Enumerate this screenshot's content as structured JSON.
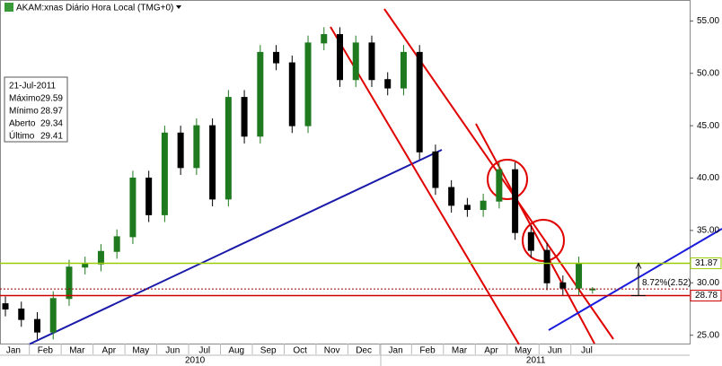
{
  "chart_data": {
    "type": "candlestick",
    "title": "AKAM:xnas Diário Hora Local (TMG+0)",
    "xlim": [
      0.08,
      21.73
    ],
    "ylim": [
      24.2,
      57.0
    ],
    "yticks": [
      {
        "value": 25,
        "label": "25.00"
      },
      {
        "value": 30,
        "label": "30.00"
      },
      {
        "value": 35,
        "label": "35.00"
      },
      {
        "value": 40,
        "label": "40.00"
      },
      {
        "value": 45,
        "label": "45.00"
      },
      {
        "value": 50,
        "label": "50.00"
      },
      {
        "value": 55,
        "label": "55.00"
      }
    ],
    "xticks": [
      {
        "value": 0.5,
        "label": "Jan"
      },
      {
        "value": 1.5,
        "label": "Feb"
      },
      {
        "value": 2.5,
        "label": "Mar"
      },
      {
        "value": 3.5,
        "label": "Apr"
      },
      {
        "value": 4.5,
        "label": "May"
      },
      {
        "value": 5.5,
        "label": "Jun"
      },
      {
        "value": 6.5,
        "label": "Jul"
      },
      {
        "value": 7.5,
        "label": "Aug"
      },
      {
        "value": 8.5,
        "label": "Sep"
      },
      {
        "value": 9.5,
        "label": "Oct"
      },
      {
        "value": 10.5,
        "label": "Nov"
      },
      {
        "value": 11.5,
        "label": "Dec"
      },
      {
        "value": 12.5,
        "label": "Jan"
      },
      {
        "value": 13.5,
        "label": "Feb"
      },
      {
        "value": 14.5,
        "label": "Mar"
      },
      {
        "value": 15.5,
        "label": "Apr"
      },
      {
        "value": 16.5,
        "label": "May"
      },
      {
        "value": 17.5,
        "label": "Jun"
      },
      {
        "value": 18.5,
        "label": "Jul"
      }
    ],
    "year_labels": [
      {
        "value": 6.2,
        "label": "2010"
      },
      {
        "value": 16.9,
        "label": "2011"
      }
    ],
    "up_color": "#1f7a1f",
    "down_color": "#000000",
    "x": [
      0.25,
      0.75,
      1.25,
      1.75,
      2.25,
      2.75,
      3.25,
      3.75,
      4.25,
      4.75,
      5.25,
      5.75,
      6.25,
      6.75,
      7.25,
      7.75,
      8.25,
      8.75,
      9.25,
      9.75,
      10.25,
      10.75,
      11.25,
      11.75,
      12.25,
      12.75,
      13.25,
      13.75,
      14.25,
      14.75,
      15.25,
      15.75,
      16.25,
      16.75,
      17.25,
      17.75,
      18.25,
      18.68
    ],
    "open": [
      28.0,
      27.5,
      26.5,
      25.3,
      28.5,
      31.5,
      31.8,
      33.0,
      34.4,
      40.0,
      36.5,
      44.3,
      41.0,
      45.0,
      38.0,
      47.7,
      44.0,
      52.0,
      51.0,
      45.0,
      52.9,
      53.7,
      49.4,
      52.9,
      49.4,
      48.6,
      52.0,
      42.5,
      39.1,
      37.4,
      37.0,
      37.8,
      40.8,
      34.8,
      33.1,
      30.0,
      29.5,
      29.34
    ],
    "high": [
      28.7,
      28.2,
      27.2,
      29.2,
      32.2,
      32.5,
      33.7,
      35.1,
      40.7,
      40.7,
      45.0,
      45.0,
      45.7,
      45.7,
      48.4,
      48.4,
      52.7,
      52.7,
      51.7,
      53.6,
      54.4,
      54.4,
      53.6,
      53.6,
      50.1,
      52.7,
      52.7,
      43.2,
      39.8,
      38.1,
      38.5,
      41.5,
      41.5,
      35.5,
      33.8,
      30.7,
      32.5,
      29.59
    ],
    "low": [
      26.8,
      25.8,
      24.6,
      24.6,
      27.8,
      30.8,
      31.1,
      32.3,
      33.7,
      35.8,
      35.8,
      40.3,
      40.3,
      37.3,
      37.3,
      43.3,
      43.3,
      50.3,
      44.3,
      44.3,
      52.2,
      48.7,
      48.7,
      48.7,
      47.9,
      47.9,
      41.8,
      38.4,
      36.7,
      36.3,
      36.3,
      37.1,
      34.1,
      32.4,
      29.3,
      28.8,
      28.8,
      28.97
    ],
    "close": [
      27.5,
      26.5,
      25.3,
      28.5,
      31.5,
      31.8,
      33.0,
      34.4,
      40.0,
      36.5,
      44.3,
      41.0,
      45.0,
      38.0,
      47.7,
      44.0,
      52.0,
      51.0,
      45.0,
      52.9,
      53.7,
      49.4,
      52.9,
      49.4,
      48.6,
      52.0,
      42.5,
      39.1,
      37.4,
      37.0,
      37.8,
      40.8,
      34.8,
      33.1,
      30.0,
      29.5,
      31.8,
      29.41
    ],
    "price_lines": [
      {
        "value": 31.87,
        "color": "#99cc00"
      },
      {
        "value": 29.41,
        "color": "#990000"
      },
      {
        "value": 28.78,
        "color": "#cc0000"
      }
    ],
    "annotation": "8.72%(2.52)",
    "info": {
      "date": "21-Jul-2011",
      "rows": [
        [
          "Máximo",
          "29.59"
        ],
        [
          "Mínimo",
          "28.97"
        ],
        [
          "Aberto",
          "29.34"
        ],
        [
          "Último",
          "29.41"
        ]
      ]
    }
  }
}
